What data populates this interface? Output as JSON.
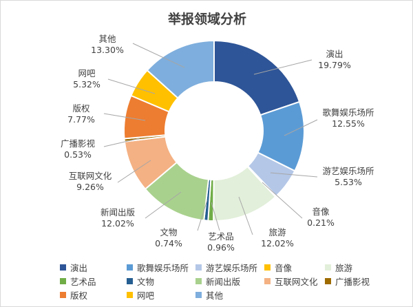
{
  "chart_data": {
    "type": "pie",
    "variant": "donut",
    "title": "举报领域分析",
    "legend_position": "bottom",
    "slices": [
      {
        "name": "演出",
        "value": 19.79,
        "label": "19.79%",
        "color": "#2E5597"
      },
      {
        "name": "歌舞娱乐场所",
        "value": 12.55,
        "label": "12.55%",
        "color": "#5B9BD5"
      },
      {
        "name": "游艺娱乐场所",
        "value": 5.53,
        "label": "5.53%",
        "color": "#B4C7E7"
      },
      {
        "name": "音像",
        "value": 0.21,
        "label": "0.21%",
        "color": "#FFC000"
      },
      {
        "name": "旅游",
        "value": 12.02,
        "label": "12.02%",
        "color": "#E2EFDA"
      },
      {
        "name": "艺术品",
        "value": 0.96,
        "label": "0.96%",
        "color": "#70AD47"
      },
      {
        "name": "文物",
        "value": 0.74,
        "label": "0.74%",
        "color": "#255E91"
      },
      {
        "name": "新闻出版",
        "value": 12.02,
        "label": "12.02%",
        "color": "#A9D18E"
      },
      {
        "name": "互联网文化",
        "value": 9.26,
        "label": "9.26%",
        "color": "#F4B183"
      },
      {
        "name": "广播影视",
        "value": 0.53,
        "label": "0.53%",
        "color": "#9E6B00"
      },
      {
        "name": "版权",
        "value": 7.77,
        "label": "7.77%",
        "color": "#ED7D31"
      },
      {
        "name": "网吧",
        "value": 5.32,
        "label": "5.32%",
        "color": "#FFC000"
      },
      {
        "name": "其他",
        "value": 13.3,
        "label": "13.30%",
        "color": "#7EAEDD"
      }
    ]
  }
}
